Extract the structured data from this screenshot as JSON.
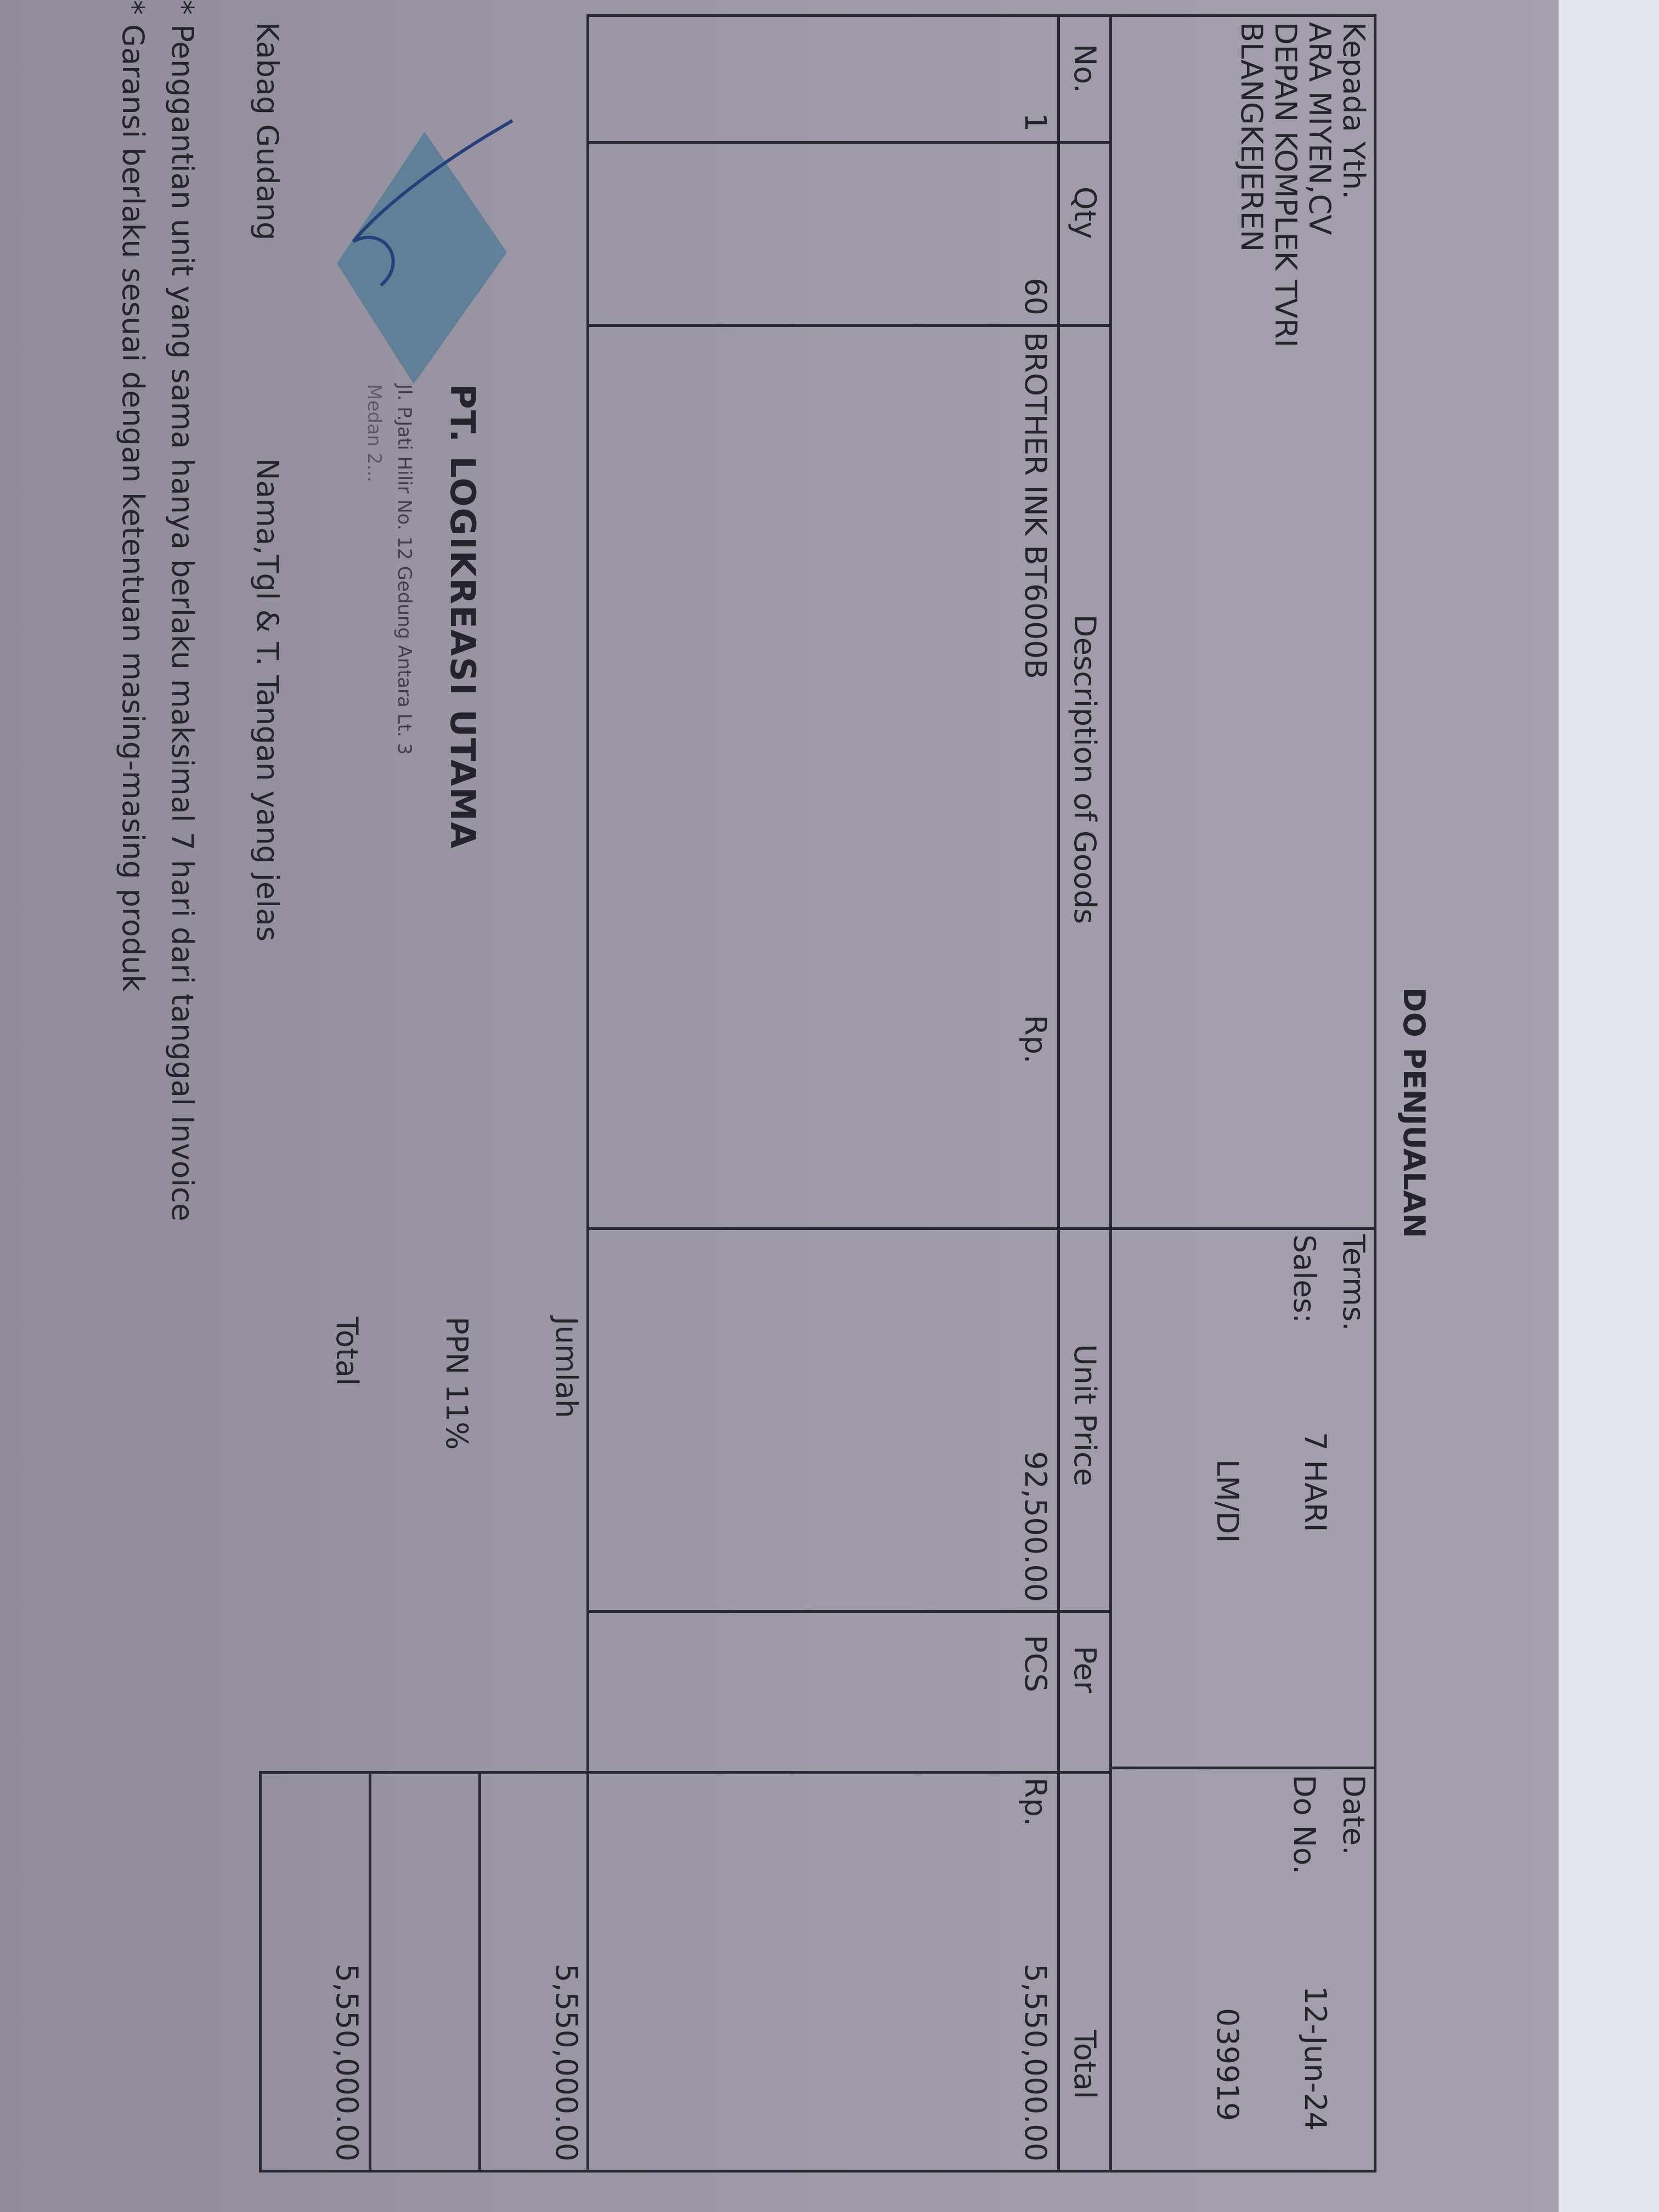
{
  "title": "DO PENJUALAN",
  "recipient": {
    "label": "Kepada Yth.",
    "name": "ARA MIYEN,CV",
    "address1": "DEPAN KOMPLEK TVRI",
    "address2": "BLANGKEJEREN"
  },
  "meta": {
    "terms_label": "Terms.",
    "terms_value": "7 HARI",
    "sales_label": "Sales:",
    "sales_value": "LM/DI",
    "date_label": "Date.",
    "date_value": "12-Jun-24",
    "do_label": "Do No.",
    "do_value": "039919"
  },
  "table": {
    "headers": [
      "No.",
      "Qty",
      "Description of Goods",
      "Unit Price",
      "Per",
      "Total"
    ],
    "rows": [
      {
        "no": "1",
        "qty": "60",
        "description": "BROTHER INK BT6000B",
        "currency": "Rp.",
        "unit_price": "92,500.00",
        "per": "PCS",
        "total_currency": "Rp.",
        "total": "5,550,000.00"
      }
    ]
  },
  "summary": {
    "jumlah_label": "Jumlah",
    "jumlah_value": "5,550,000.00",
    "ppn_label": "PPN 11%",
    "ppn_value": "",
    "total_label": "Total",
    "total_value": "5,550,000.00"
  },
  "stamp": {
    "company": "PT. LOGIKREASI UTAMA",
    "address": "Jl. P.Jati Hilir No. 12 Gedung Antara Lt. 3",
    "city": "Medan 2...",
    "color": "#4f7a96"
  },
  "signature": {
    "role": "Kabag Gudang",
    "instruction": "Nama,Tgl & T. Tangan yang jelas"
  },
  "notes": [
    "* Penggantian unit yang sama hanya berlaku maksimal 7 hari dari tanggal Invoice",
    "* Garansi berlaku sesuai dengan ketentuan masing-masing produk"
  ]
}
